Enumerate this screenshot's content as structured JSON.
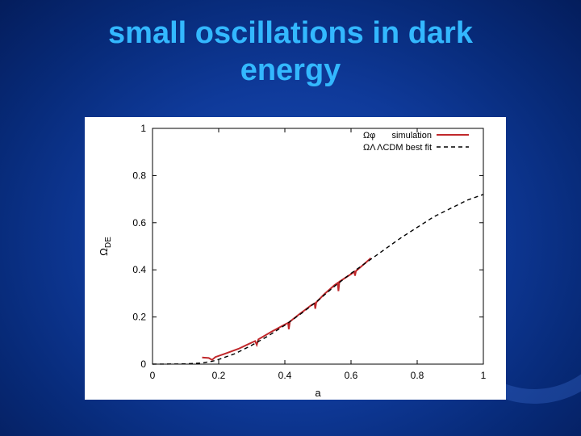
{
  "slide": {
    "title_line1": "small oscillations in dark",
    "title_line2": "energy"
  },
  "chart_data": {
    "type": "line",
    "xlabel": "a",
    "ylabel": "Ω_DE",
    "xlim": [
      0,
      1
    ],
    "ylim": [
      0,
      1
    ],
    "xticks": [
      0,
      0.2,
      0.4,
      0.6,
      0.8,
      1
    ],
    "yticks": [
      0,
      0.2,
      0.4,
      0.6,
      0.8,
      1
    ],
    "xtick_labels": [
      "0",
      "0.2",
      "0.4",
      "0.6",
      "0.8",
      "1"
    ],
    "ytick_labels": [
      "0",
      "0.2",
      "0.4",
      "0.6",
      "0.8",
      "1"
    ],
    "grid": false,
    "legend_position": "top-right",
    "series": [
      {
        "name": "Ωφ simulation",
        "label_symbol": "Ωφ",
        "label_text": "simulation",
        "color": "#c0282b",
        "style": "solid",
        "points": [
          [
            0.15,
            0.028
          ],
          [
            0.17,
            0.026
          ],
          [
            0.18,
            0.018
          ],
          [
            0.19,
            0.03
          ],
          [
            0.22,
            0.045
          ],
          [
            0.26,
            0.065
          ],
          [
            0.29,
            0.085
          ],
          [
            0.31,
            0.098
          ],
          [
            0.315,
            0.082
          ],
          [
            0.32,
            0.105
          ],
          [
            0.36,
            0.138
          ],
          [
            0.4,
            0.168
          ],
          [
            0.41,
            0.175
          ],
          [
            0.412,
            0.148
          ],
          [
            0.415,
            0.18
          ],
          [
            0.44,
            0.208
          ],
          [
            0.48,
            0.25
          ],
          [
            0.49,
            0.258
          ],
          [
            0.492,
            0.235
          ],
          [
            0.495,
            0.262
          ],
          [
            0.52,
            0.298
          ],
          [
            0.55,
            0.335
          ],
          [
            0.56,
            0.345
          ],
          [
            0.562,
            0.31
          ],
          [
            0.565,
            0.35
          ],
          [
            0.6,
            0.382
          ],
          [
            0.61,
            0.392
          ],
          [
            0.612,
            0.375
          ],
          [
            0.615,
            0.395
          ],
          [
            0.64,
            0.425
          ],
          [
            0.66,
            0.45
          ]
        ]
      },
      {
        "name": "ΩΛ ΛCDM best fit",
        "label_symbol": "ΩΛ",
        "label_text": "ΛCDM best fit",
        "color": "#000000",
        "style": "dashed",
        "points": [
          [
            0.0,
            0.0
          ],
          [
            0.1,
            0.001
          ],
          [
            0.15,
            0.005
          ],
          [
            0.18,
            0.012
          ],
          [
            0.2,
            0.02
          ],
          [
            0.25,
            0.045
          ],
          [
            0.3,
            0.08
          ],
          [
            0.35,
            0.12
          ],
          [
            0.4,
            0.165
          ],
          [
            0.45,
            0.215
          ],
          [
            0.5,
            0.27
          ],
          [
            0.55,
            0.33
          ],
          [
            0.6,
            0.385
          ],
          [
            0.65,
            0.435
          ],
          [
            0.7,
            0.485
          ],
          [
            0.75,
            0.535
          ],
          [
            0.8,
            0.58
          ],
          [
            0.85,
            0.625
          ],
          [
            0.9,
            0.66
          ],
          [
            0.95,
            0.695
          ],
          [
            1.0,
            0.72
          ]
        ]
      }
    ]
  }
}
